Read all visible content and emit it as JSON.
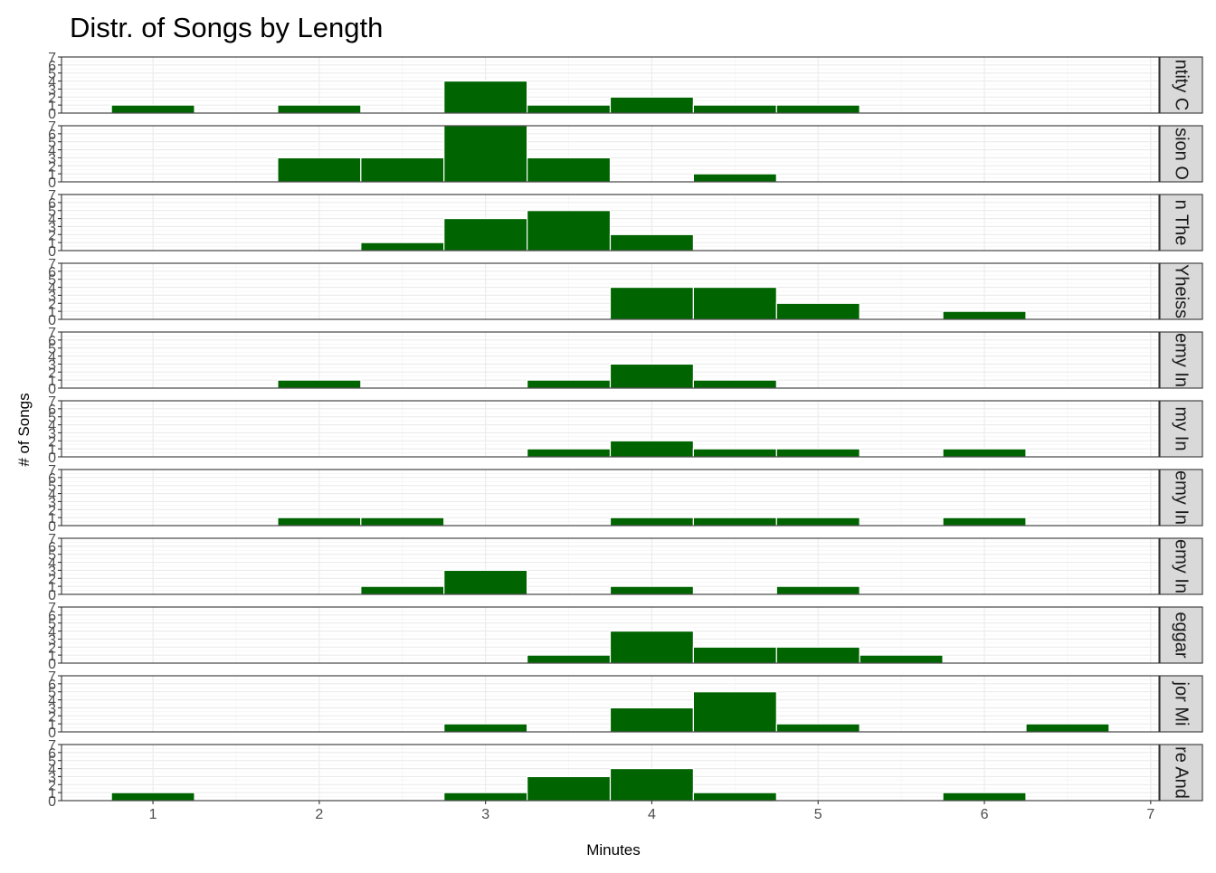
{
  "chart_data": {
    "type": "bar",
    "title": "Distr. of Songs by Length",
    "xlabel": "Minutes",
    "ylabel": "# of Songs",
    "x_ticks": [
      1,
      2,
      3,
      4,
      5,
      6,
      7
    ],
    "y_ticks": [
      0,
      1,
      2,
      3,
      4,
      5,
      6,
      7
    ],
    "xlim": [
      0.45,
      7.05
    ],
    "ylim": [
      0,
      7
    ],
    "bin_width": 0.5,
    "bar_color": "#006400",
    "strip_fill": "#d9d9d9",
    "grid": true,
    "facets": [
      {
        "strip": "ntity C",
        "bins": [
          {
            "x": 1.0,
            "count": 1
          },
          {
            "x": 2.0,
            "count": 1
          },
          {
            "x": 3.0,
            "count": 4
          },
          {
            "x": 3.5,
            "count": 1
          },
          {
            "x": 4.0,
            "count": 2
          },
          {
            "x": 4.5,
            "count": 1
          },
          {
            "x": 5.0,
            "count": 1
          }
        ]
      },
      {
        "strip": "sion O",
        "bins": [
          {
            "x": 2.0,
            "count": 3
          },
          {
            "x": 2.5,
            "count": 3
          },
          {
            "x": 3.0,
            "count": 7
          },
          {
            "x": 3.5,
            "count": 3
          },
          {
            "x": 4.5,
            "count": 1
          }
        ]
      },
      {
        "strip": "n The",
        "bins": [
          {
            "x": 2.5,
            "count": 1
          },
          {
            "x": 3.0,
            "count": 4
          },
          {
            "x": 3.5,
            "count": 5
          },
          {
            "x": 4.0,
            "count": 2
          }
        ]
      },
      {
        "strip": "Yheiss",
        "bins": [
          {
            "x": 4.0,
            "count": 4
          },
          {
            "x": 4.5,
            "count": 4
          },
          {
            "x": 5.0,
            "count": 2
          },
          {
            "x": 6.0,
            "count": 1
          }
        ]
      },
      {
        "strip": "emy In",
        "bins": [
          {
            "x": 2.0,
            "count": 1
          },
          {
            "x": 3.5,
            "count": 1
          },
          {
            "x": 4.0,
            "count": 3
          },
          {
            "x": 4.5,
            "count": 1
          }
        ]
      },
      {
        "strip": "my In",
        "bins": [
          {
            "x": 3.5,
            "count": 1
          },
          {
            "x": 4.0,
            "count": 2
          },
          {
            "x": 4.5,
            "count": 1
          },
          {
            "x": 5.0,
            "count": 1
          },
          {
            "x": 6.0,
            "count": 1
          }
        ]
      },
      {
        "strip": "emy In",
        "bins": [
          {
            "x": 2.0,
            "count": 1
          },
          {
            "x": 2.5,
            "count": 1
          },
          {
            "x": 4.0,
            "count": 1
          },
          {
            "x": 4.5,
            "count": 1
          },
          {
            "x": 5.0,
            "count": 1
          },
          {
            "x": 6.0,
            "count": 1
          }
        ]
      },
      {
        "strip": "emy In",
        "bins": [
          {
            "x": 2.5,
            "count": 1
          },
          {
            "x": 3.0,
            "count": 3
          },
          {
            "x": 4.0,
            "count": 1
          },
          {
            "x": 5.0,
            "count": 1
          }
        ]
      },
      {
        "strip": "eggar",
        "bins": [
          {
            "x": 3.5,
            "count": 1
          },
          {
            "x": 4.0,
            "count": 4
          },
          {
            "x": 4.5,
            "count": 2
          },
          {
            "x": 5.0,
            "count": 2
          },
          {
            "x": 5.5,
            "count": 1
          }
        ]
      },
      {
        "strip": "jor Mi",
        "bins": [
          {
            "x": 3.0,
            "count": 1
          },
          {
            "x": 4.0,
            "count": 3
          },
          {
            "x": 4.5,
            "count": 5
          },
          {
            "x": 5.0,
            "count": 1
          },
          {
            "x": 6.5,
            "count": 1
          }
        ]
      },
      {
        "strip": "re And",
        "bins": [
          {
            "x": 1.0,
            "count": 1
          },
          {
            "x": 3.0,
            "count": 1
          },
          {
            "x": 3.5,
            "count": 3
          },
          {
            "x": 4.0,
            "count": 4
          },
          {
            "x": 4.5,
            "count": 1
          },
          {
            "x": 6.0,
            "count": 1
          }
        ]
      }
    ]
  }
}
